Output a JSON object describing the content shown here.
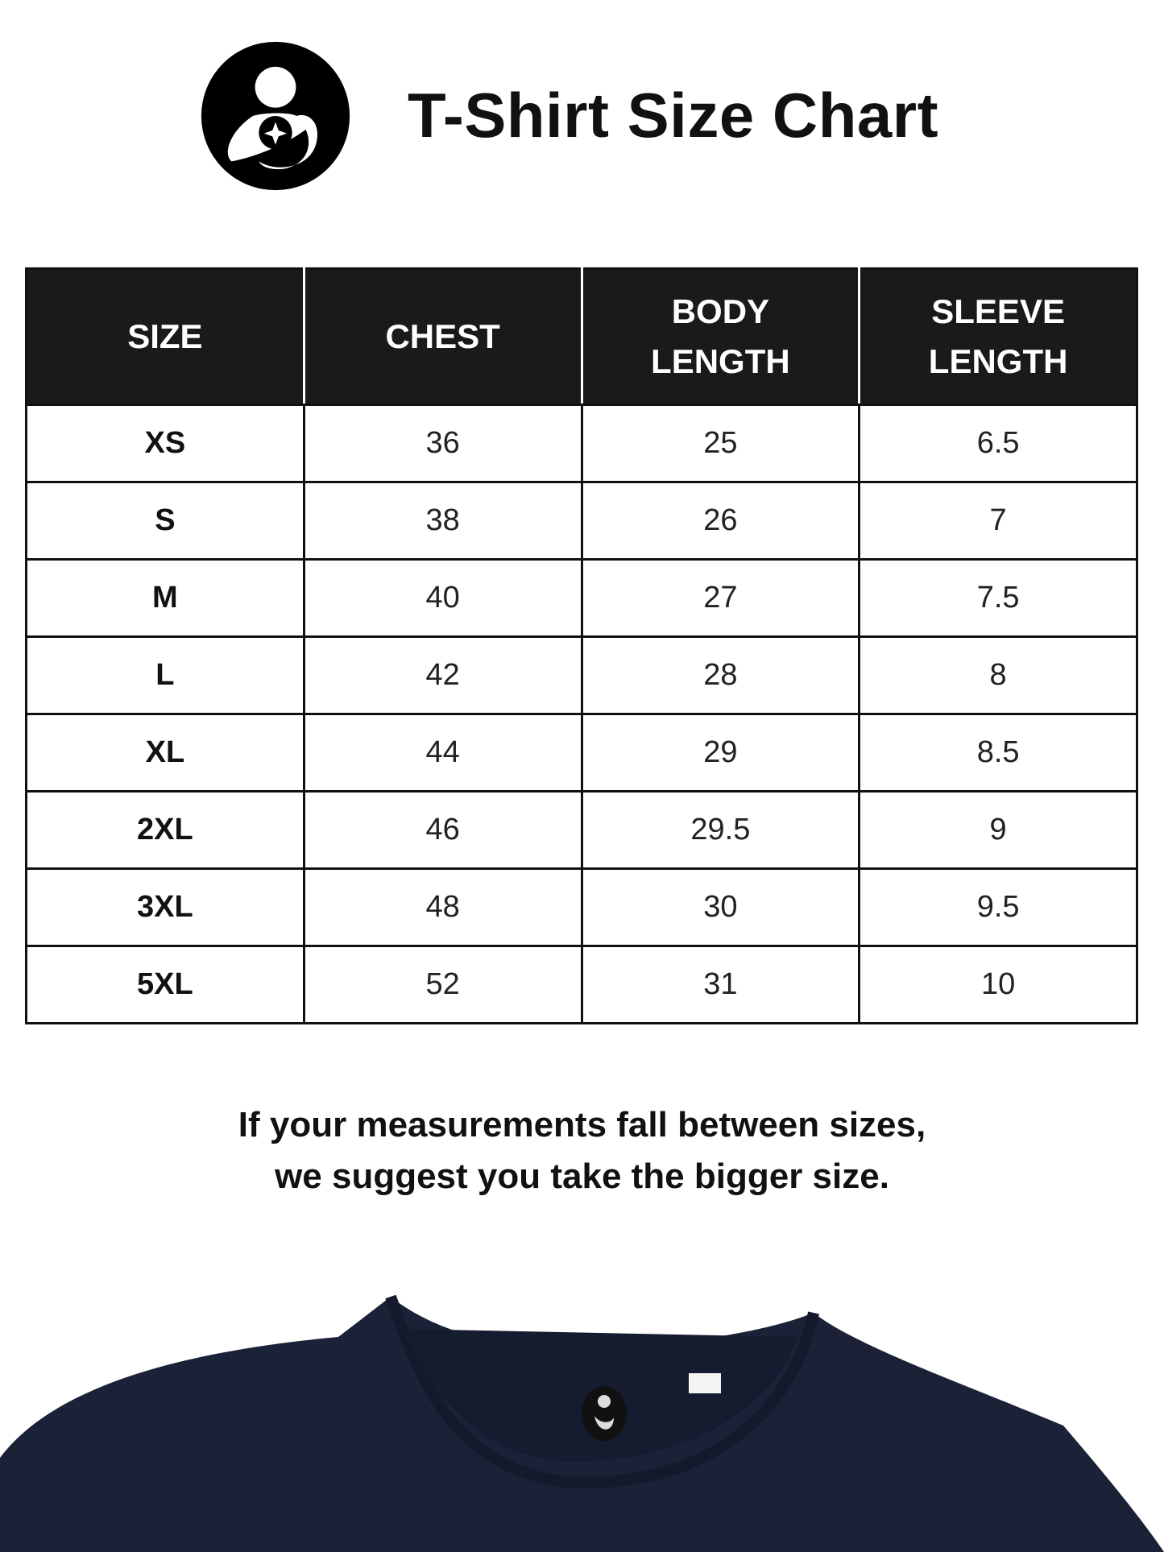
{
  "header": {
    "title": "T-Shirt Size Chart",
    "logo_icon": "mother-child-logo"
  },
  "table": {
    "columns": [
      [
        "SIZE"
      ],
      [
        "CHEST"
      ],
      [
        "BODY",
        "LENGTH"
      ],
      [
        "SLEEVE",
        "LENGTH"
      ]
    ],
    "rows": [
      [
        "XS",
        "36",
        "25",
        "6.5"
      ],
      [
        "S",
        "38",
        "26",
        "7"
      ],
      [
        "M",
        "40",
        "27",
        "7.5"
      ],
      [
        "L",
        "42",
        "28",
        "8"
      ],
      [
        "XL",
        "44",
        "29",
        "8.5"
      ],
      [
        "2XL",
        "46",
        "29.5",
        "9"
      ],
      [
        "3XL",
        "48",
        "30",
        "9.5"
      ],
      [
        "5XL",
        "52",
        "31",
        "10"
      ]
    ]
  },
  "note": {
    "line1": "If your measurements fall between sizes,",
    "line2": "we suggest you take the bigger size."
  },
  "colors": {
    "header_bg": "#1a1a1a",
    "shirt": "#1b2136"
  }
}
